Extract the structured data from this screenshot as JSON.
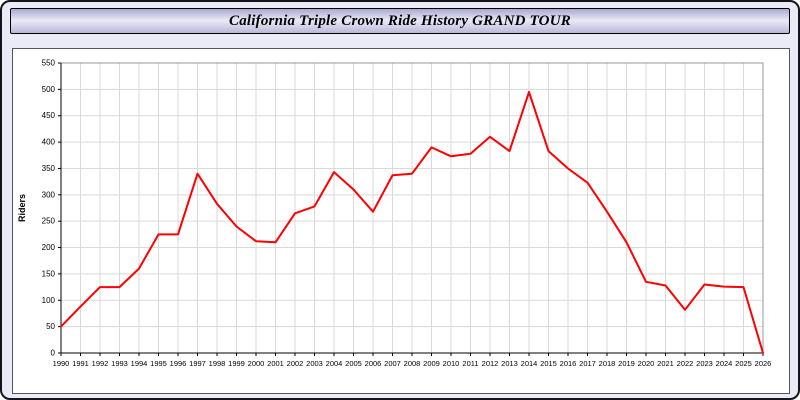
{
  "header": {
    "title": "California Triple Crown Ride History GRAND TOUR"
  },
  "chart_data": {
    "type": "line",
    "title": "California Triple Crown Ride History GRAND TOUR",
    "xlabel": "",
    "ylabel": "Riders",
    "ylim": [
      0,
      550
    ],
    "ytick_step": 50,
    "grid": true,
    "legend_position": "none",
    "x": [
      "1990",
      "1991",
      "1992",
      "1993",
      "1994",
      "1995",
      "1996",
      "1997",
      "1998",
      "1999",
      "2000",
      "2001",
      "2002",
      "2003",
      "2004",
      "2005",
      "2006",
      "2007",
      "2008",
      "2009",
      "2010",
      "2011",
      "2012",
      "2013",
      "2014",
      "2015",
      "2016",
      "2017",
      "2018",
      "2019",
      "2020",
      "2021",
      "2022",
      "2023",
      "2024",
      "2025",
      "2026"
    ],
    "series": [
      {
        "name": "Riders",
        "color": "#ff0000",
        "values": [
          50,
          88,
          125,
          125,
          160,
          225,
          225,
          340,
          283,
          240,
          212,
          210,
          265,
          278,
          343,
          310,
          268,
          337,
          340,
          390,
          373,
          378,
          410,
          383,
          495,
          383,
          350,
          323,
          268,
          210,
          135,
          128,
          82,
          130,
          126,
          125,
          0
        ]
      }
    ],
    "colors": {
      "plot_background": "#ffffff",
      "gridline": "#d9d9d9",
      "axis": "#000000",
      "tick_label": "#000000"
    }
  }
}
